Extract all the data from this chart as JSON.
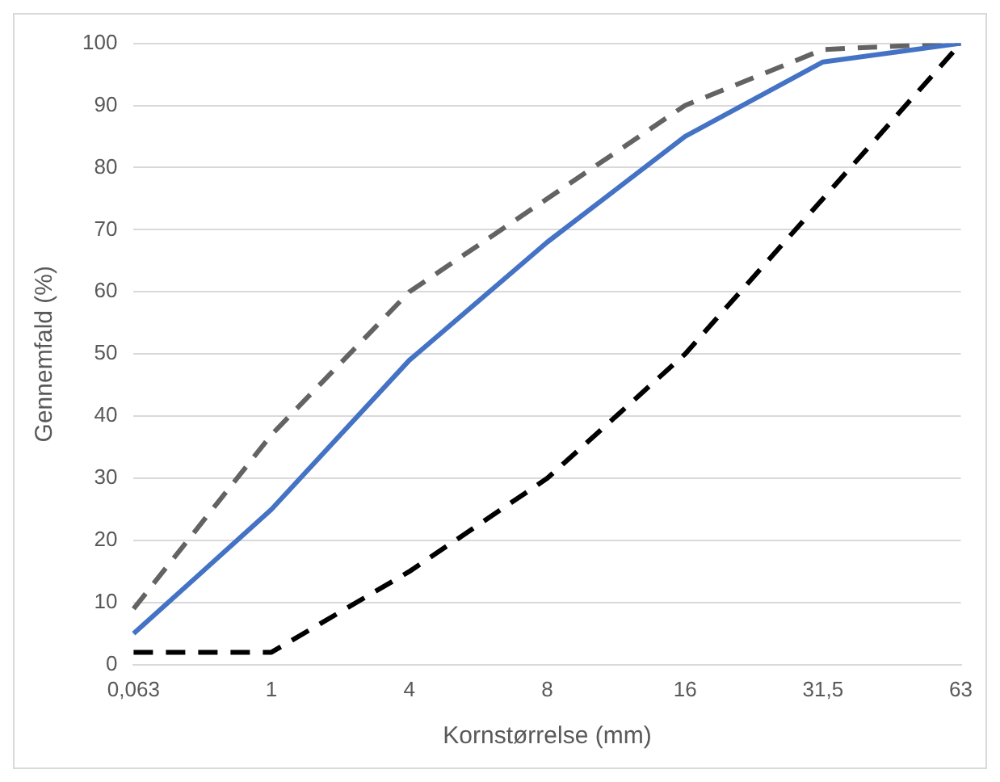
{
  "chart_data": {
    "type": "line",
    "xlabel": "Kornstørrelse (mm)",
    "ylabel": "Gennemfald (%)",
    "categories": [
      "0,063",
      "1",
      "4",
      "8",
      "16",
      "31,5",
      "63"
    ],
    "series": [
      {
        "color": "#4472c4",
        "line_style": "solid",
        "values": [
          5,
          25,
          49,
          68,
          85,
          97,
          100
        ]
      },
      {
        "color": "#636363",
        "line_style": "dashed",
        "values": [
          9,
          37,
          60,
          75,
          90,
          99,
          100
        ]
      },
      {
        "color": "#000000",
        "line_style": "dashed",
        "values": [
          2,
          2,
          15,
          30,
          50,
          75,
          100
        ]
      }
    ],
    "ylim": [
      0,
      100
    ],
    "yticks": [
      0,
      10,
      20,
      30,
      40,
      50,
      60,
      70,
      80,
      90,
      100
    ],
    "grid": "y",
    "legend": false,
    "marker": "none"
  }
}
